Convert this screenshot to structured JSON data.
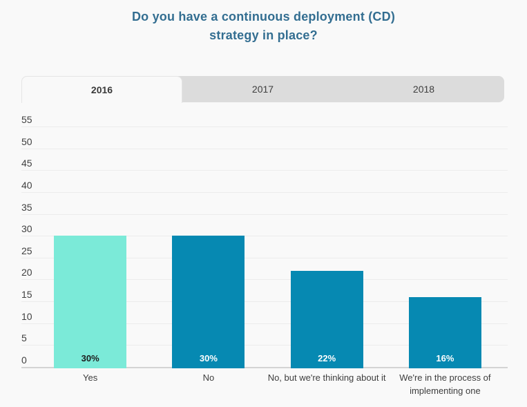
{
  "header": {
    "title": "Do you have a continuous deployment (CD) strategy in place?",
    "title_color": "#336e91"
  },
  "tabs": {
    "items": [
      {
        "label": "2016",
        "active": true
      },
      {
        "label": "2017",
        "active": false
      },
      {
        "label": "2018",
        "active": false
      }
    ]
  },
  "chart_data": {
    "type": "bar",
    "title": "Do you have a continuous deployment (CD) strategy in place?",
    "selected_tab": "2016",
    "categories": [
      "Yes",
      "No",
      "No, but we're thinking about it",
      "We're in the process of implementing one"
    ],
    "values": [
      30,
      30,
      22,
      16
    ],
    "value_labels": [
      "30%",
      "30%",
      "22%",
      "16%"
    ],
    "bar_colors": [
      "#7bead8",
      "#0689b2",
      "#0689b2",
      "#0689b2"
    ],
    "value_label_colors": [
      "#1c1c1c",
      "#ffffff",
      "#ffffff",
      "#ffffff"
    ],
    "yticks": [
      0,
      5,
      10,
      15,
      20,
      25,
      30,
      35,
      40,
      45,
      50,
      55
    ],
    "ylim": [
      0,
      55
    ],
    "xlabel": "",
    "ylabel": "",
    "grid": "horizontal",
    "legend": false,
    "colors": {
      "background": "#f9f9f9",
      "gridline": "#ececec",
      "axis_line": "#d4d4d4",
      "tick_text": "#3f3f3f",
      "tab_bar": "#dcdcdc"
    }
  }
}
